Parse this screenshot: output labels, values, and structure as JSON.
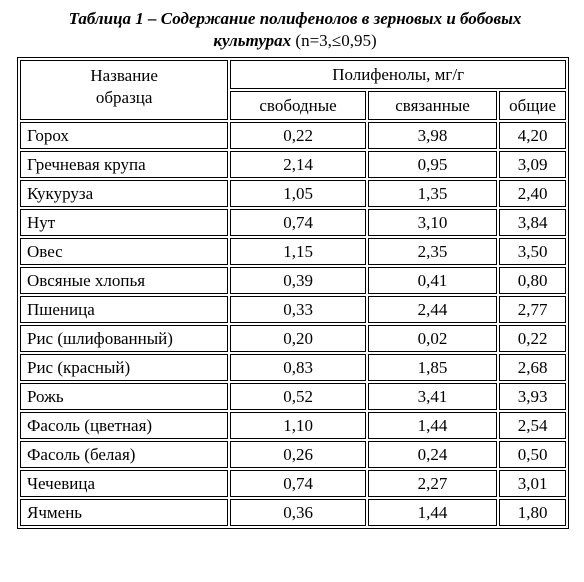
{
  "header": {
    "title": "Таблица 1 – Содержание полифенолов в зерновых и бобовых культурах",
    "condition": "(n=3,≤0,95)"
  },
  "table": {
    "columns": {
      "name": "Название образца",
      "group": "Полифенолы, мг/г",
      "sub": [
        "свободные",
        "связанные",
        "общие"
      ]
    },
    "rows": [
      [
        "Горох",
        "0,22",
        "3,98",
        "4,20"
      ],
      [
        "Гречневая крупа",
        "2,14",
        "0,95",
        "3,09"
      ],
      [
        "Кукуруза",
        "1,05",
        "1,35",
        "2,40"
      ],
      [
        "Нут",
        "0,74",
        "3,10",
        "3,84"
      ],
      [
        "Овес",
        "1,15",
        "2,35",
        "3,50"
      ],
      [
        "Овсяные хлопья",
        "0,39",
        "0,41",
        "0,80"
      ],
      [
        "Пшеница",
        "0,33",
        "2,44",
        "2,77"
      ],
      [
        "Рис (шлифованный)",
        "0,20",
        "0,02",
        "0,22"
      ],
      [
        "Рис (красный)",
        "0,83",
        "1,85",
        "2,68"
      ],
      [
        "Рожь",
        "0,52",
        "3,41",
        "3,93"
      ],
      [
        "Фасоль (цветная)",
        "1,10",
        "1,44",
        "2,54"
      ],
      [
        "Фасоль (белая)",
        "0,26",
        "0,24",
        "0,50"
      ],
      [
        "Чечевица",
        "0,74",
        "2,27",
        "3,01"
      ],
      [
        "Ячмень",
        "0,36",
        "1,44",
        "1,80"
      ]
    ]
  }
}
